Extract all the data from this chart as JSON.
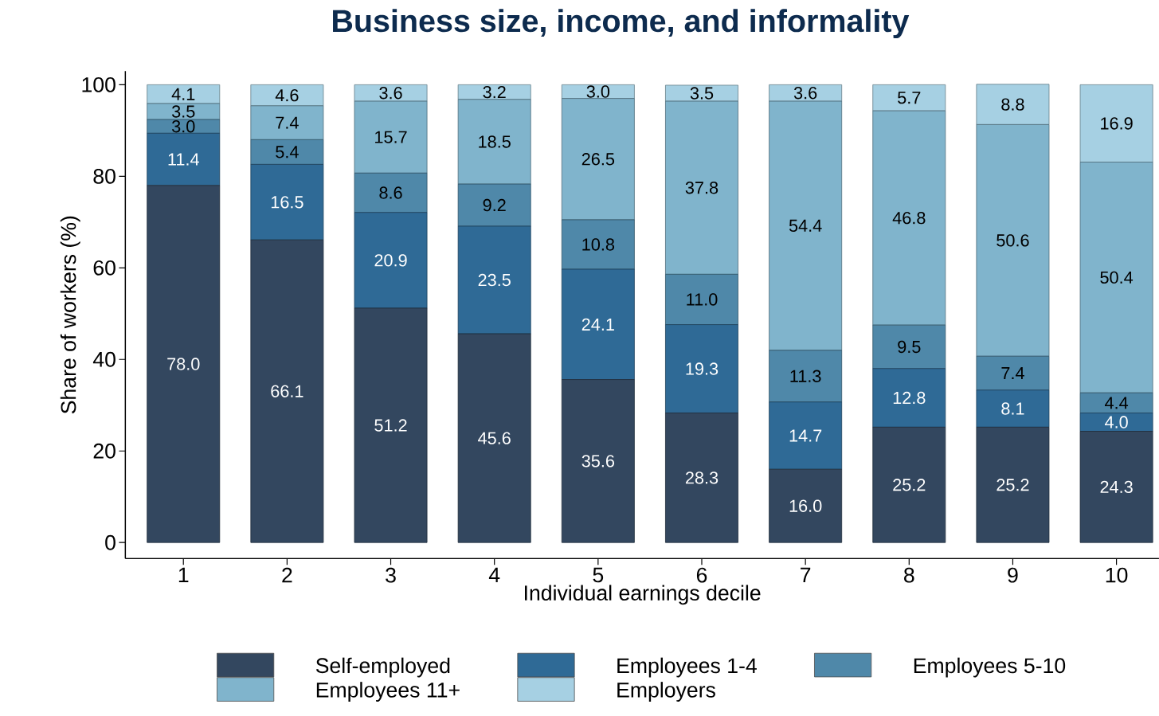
{
  "chart_data": {
    "type": "bar",
    "stacked": true,
    "title": "Business size, income, and informality",
    "xlabel": "Individual earnings decile",
    "ylabel": "Share of workers (%)",
    "categories": [
      "1",
      "2",
      "3",
      "4",
      "5",
      "6",
      "7",
      "8",
      "9",
      "10"
    ],
    "ylim": [
      -3.5,
      103
    ],
    "yticks": [
      0,
      20,
      40,
      60,
      80,
      100
    ],
    "legend": "bottom",
    "grid": false,
    "series": [
      {
        "name": "Self-employed",
        "color": "#33475f",
        "values": [
          78.0,
          66.1,
          51.2,
          45.6,
          35.6,
          28.3,
          16.0,
          25.2,
          25.2,
          24.3
        ],
        "value_labels": [
          "78.0",
          "66.1",
          "51.2",
          "45.6",
          "35.6",
          "28.3",
          "16.0",
          "25.2",
          "25.2",
          "24.3"
        ]
      },
      {
        "name": "Employees 1-4",
        "color": "#2f6a96",
        "values": [
          11.4,
          16.5,
          20.9,
          23.5,
          24.1,
          19.3,
          14.7,
          12.8,
          8.1,
          4.0
        ],
        "value_labels": [
          "11.4",
          "16.5",
          "20.9",
          "23.5",
          "24.1",
          "19.3",
          "14.7",
          "12.8",
          "8.1",
          "4.0"
        ]
      },
      {
        "name": "Employees 5-10",
        "color": "#4f88a9",
        "values": [
          3.0,
          5.4,
          8.6,
          9.2,
          10.8,
          11.0,
          11.3,
          9.5,
          7.4,
          4.4
        ],
        "value_labels": [
          "3.0",
          "5.4",
          "8.6",
          "9.2",
          "10.8",
          "11.0",
          "11.3",
          "9.5",
          "7.4",
          "4.4"
        ]
      },
      {
        "name": "Employees 11+",
        "color": "#80b4cc",
        "values": [
          3.5,
          7.4,
          15.7,
          18.5,
          26.5,
          37.8,
          54.4,
          46.8,
          50.6,
          50.4
        ],
        "value_labels": [
          "3.5",
          "7.4",
          "15.7",
          "18.5",
          "26.5",
          "37.8",
          "54.4",
          "46.8",
          "50.6",
          "50.4"
        ]
      },
      {
        "name": "Employers",
        "color": "#a6d0e3",
        "values": [
          4.1,
          4.6,
          3.6,
          3.2,
          3.0,
          3.5,
          3.6,
          5.7,
          8.8,
          16.9
        ],
        "value_labels": [
          "4.1",
          "4.6",
          "3.6",
          "3.2",
          "3.0",
          "3.5",
          "3.6",
          "5.7",
          "8.8",
          "16.9"
        ]
      }
    ]
  }
}
